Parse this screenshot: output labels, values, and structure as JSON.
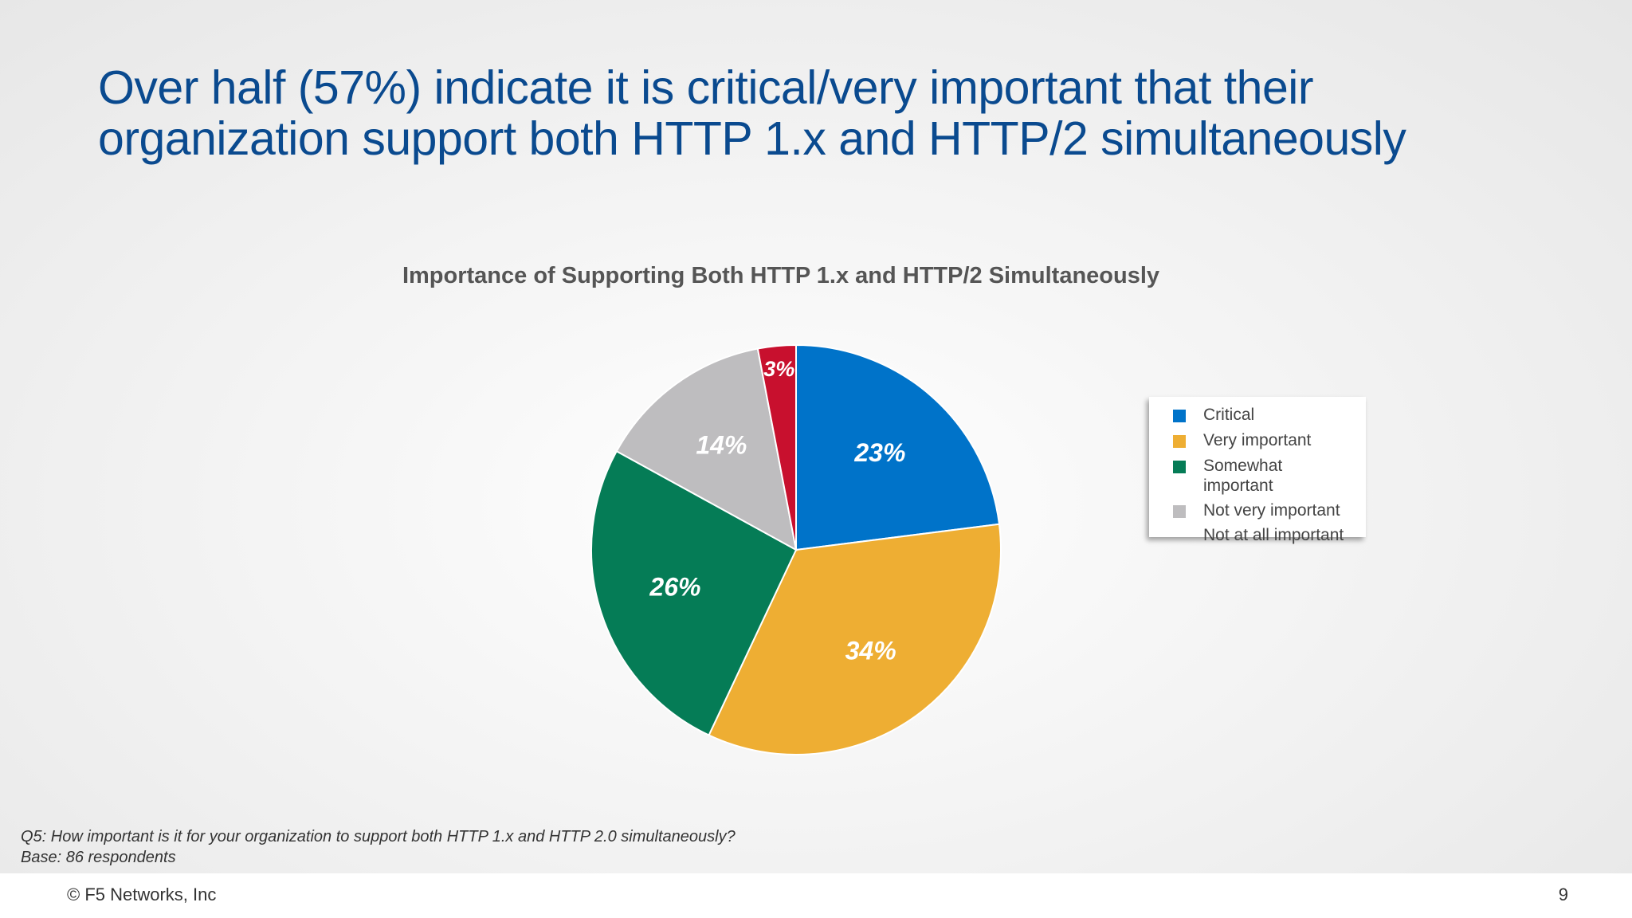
{
  "slide": {
    "title_line1": "Over half (57%) indicate it is critical/very important that their",
    "title_line2": "organization support both HTTP 1.x and HTTP/2 simultaneously",
    "footnote_question": "Q5:  How important is it for your organization to support both HTTP 1.x and HTTP 2.0 simultaneously?",
    "footnote_base": "Base: 86 respondents",
    "copyright": "© F5 Networks, Inc",
    "page_number": "9"
  },
  "chart_data": {
    "type": "pie",
    "title": "Importance of Supporting Both HTTP 1.x and HTTP/2 Simultaneously",
    "legend_position": "right",
    "slices": [
      {
        "label": "Critical",
        "value": 23,
        "display": "23%",
        "color": "#0073c9"
      },
      {
        "label": "Very important",
        "value": 34,
        "display": "34%",
        "color": "#eeae33"
      },
      {
        "label": "Somewhat important",
        "value": 26,
        "display": "26%",
        "color": "#057c56"
      },
      {
        "label": "Not very important",
        "value": 14,
        "display": "14%",
        "color": "#bebdbf"
      },
      {
        "label": "Not at all important",
        "value": 3,
        "display": "3%",
        "color": "#c8102e"
      }
    ]
  }
}
